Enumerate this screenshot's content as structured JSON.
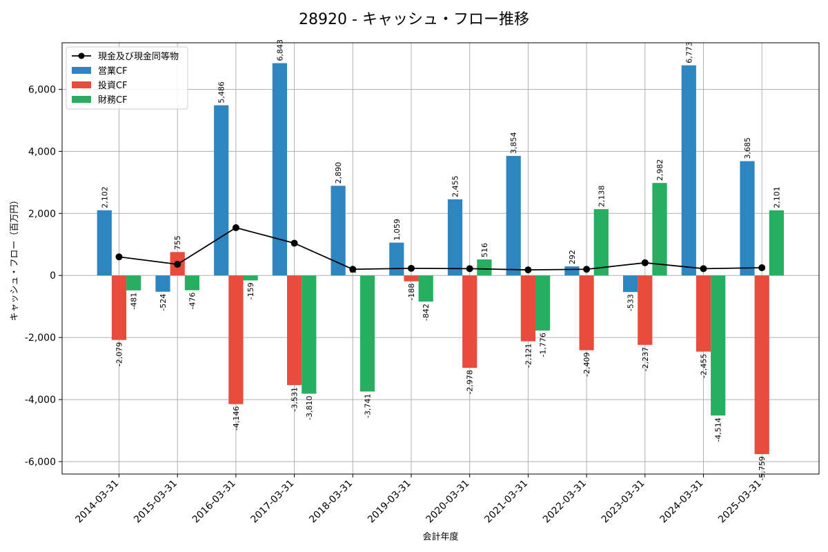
{
  "chart_data": {
    "type": "bar",
    "title": "28920 - キャッシュ・フロー推移",
    "xlabel": "会計年度",
    "ylabel": "キャッシュ・フロー（百万円）",
    "ylim": [
      -6400,
      7500
    ],
    "yticks": [
      -6000,
      -4000,
      -2000,
      0,
      2000,
      4000,
      6000
    ],
    "ytick_labels": [
      "-6,000",
      "-4,000",
      "-2,000",
      "0",
      "2,000",
      "4,000",
      "6,000"
    ],
    "grid": true,
    "legend_position": "top-left",
    "categories": [
      "2014-03-31",
      "2015-03-31",
      "2016-03-31",
      "2017-03-31",
      "2018-03-31",
      "2019-03-31",
      "2020-03-31",
      "2021-03-31",
      "2022-03-31",
      "2023-03-31",
      "2024-03-31",
      "2025-03-31"
    ],
    "series": [
      {
        "name": "営業CF",
        "kind": "bar",
        "color": "#2e86c1",
        "values": [
          2102,
          -524,
          5486,
          6843,
          2890,
          1059,
          2455,
          3854,
          292,
          -533,
          6773,
          3685
        ],
        "labels": [
          "2,102",
          "-524",
          "5,486",
          "6,843",
          "2,890",
          "1,059",
          "2,455",
          "3,854",
          "292",
          "-533",
          "6,773",
          "3,685"
        ]
      },
      {
        "name": "投資CF",
        "kind": "bar",
        "color": "#e74c3c",
        "values": [
          -2079,
          755,
          -4146,
          -3531,
          2,
          -188,
          -2978,
          -2121,
          -2409,
          -2237,
          -2455,
          -5759
        ],
        "labels": [
          "-2,079",
          "755",
          "-4,146",
          "-3,531",
          "2",
          "-188",
          "-2,978",
          "-2,121",
          "-2,409",
          "-2,237",
          "-2,455",
          "-5,759"
        ]
      },
      {
        "name": "財務CF",
        "kind": "bar",
        "color": "#27ae60",
        "values": [
          -481,
          -476,
          -159,
          -3810,
          -3741,
          -842,
          516,
          -1776,
          2138,
          2982,
          -4514,
          2101
        ],
        "labels": [
          "-481",
          "-476",
          "-159",
          "-3,810",
          "-3,741",
          "-842",
          "516",
          "-1,776",
          "2,138",
          "2,982",
          "-4,514",
          "2,101"
        ]
      },
      {
        "name": "現金及び現金同等物",
        "kind": "line",
        "color": "#000000",
        "values": [
          600,
          360,
          1540,
          1040,
          200,
          230,
          220,
          180,
          200,
          410,
          220,
          250
        ]
      }
    ]
  }
}
